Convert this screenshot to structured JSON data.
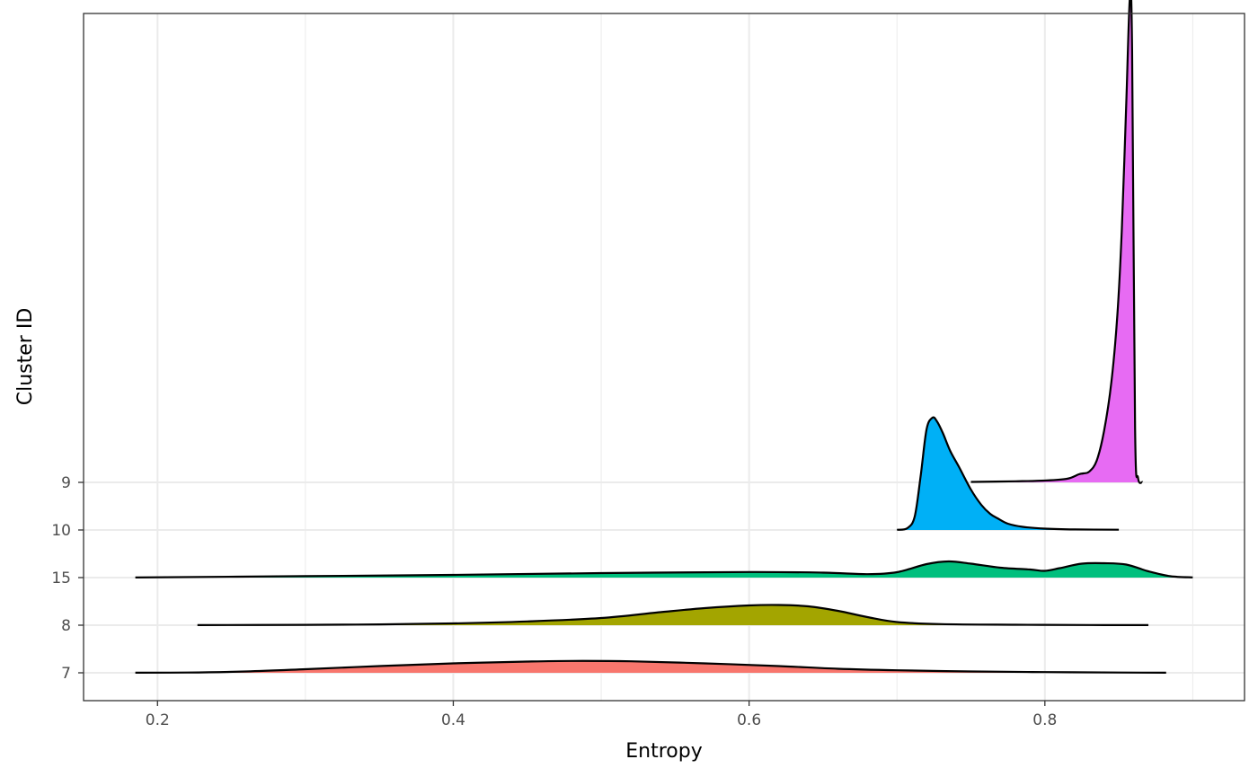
{
  "chart_data": {
    "type": "ridgeline",
    "title": "",
    "xlabel": "Entropy",
    "ylabel": "Cluster ID",
    "xlim": [
      0.15,
      0.935
    ],
    "x_ticks": [
      0.2,
      0.4,
      0.6,
      0.8
    ],
    "x_tick_labels": [
      "0.2",
      "0.4",
      "0.6",
      "0.8"
    ],
    "categories": [
      "7",
      "8",
      "15",
      "10",
      "9"
    ],
    "grid": true,
    "legend": "none",
    "series": [
      {
        "name": "7",
        "color": "#F8766D",
        "x": [
          0.185,
          0.22,
          0.26,
          0.3,
          0.35,
          0.4,
          0.45,
          0.48,
          0.52,
          0.57,
          0.62,
          0.66,
          0.7,
          0.75,
          0.8,
          0.85,
          0.882
        ],
        "density": [
          0.1,
          0.3,
          1.5,
          4.0,
          7.5,
          10.5,
          12.5,
          13.2,
          12.8,
          10.5,
          7.5,
          4.5,
          2.8,
          1.5,
          0.8,
          0.3,
          0.1
        ]
      },
      {
        "name": "8",
        "color": "#A3A500",
        "x": [
          0.227,
          0.3,
          0.35,
          0.4,
          0.45,
          0.5,
          0.54,
          0.57,
          0.6,
          0.62,
          0.64,
          0.66,
          0.68,
          0.7,
          0.73,
          0.78,
          0.83,
          0.87
        ],
        "density": [
          0.1,
          0.4,
          0.9,
          2.0,
          4.2,
          8.0,
          14.5,
          19.0,
          22.0,
          22.5,
          21.0,
          16.0,
          9.0,
          3.5,
          1.2,
          0.5,
          0.2,
          0.1
        ]
      },
      {
        "name": "15",
        "color": "#00BF7D",
        "x": [
          0.185,
          0.3,
          0.4,
          0.5,
          0.6,
          0.65,
          0.68,
          0.7,
          0.72,
          0.735,
          0.75,
          0.77,
          0.79,
          0.8,
          0.81,
          0.825,
          0.84,
          0.855,
          0.87,
          0.885,
          0.9
        ],
        "density": [
          0.1,
          1.6,
          3.0,
          5.0,
          6.2,
          5.5,
          3.8,
          6.0,
          15.0,
          18.0,
          15.5,
          11.0,
          9.0,
          7.5,
          10.5,
          15.5,
          16.0,
          14.5,
          7.0,
          1.5,
          0.2
        ]
      },
      {
        "name": "10",
        "color": "#00B0F6",
        "x": [
          0.7,
          0.707,
          0.712,
          0.716,
          0.72,
          0.724,
          0.727,
          0.731,
          0.736,
          0.742,
          0.75,
          0.757,
          0.763,
          0.768,
          0.775,
          0.785,
          0.8,
          0.82,
          0.85
        ],
        "density": [
          0.2,
          2.0,
          15.0,
          60.0,
          112.0,
          125.0,
          121.0,
          108.0,
          88.0,
          70.0,
          45.0,
          28.0,
          18.0,
          13.0,
          7.0,
          3.5,
          1.5,
          0.6,
          0.3
        ]
      },
      {
        "name": "9",
        "color": "#E76BF3",
        "x": [
          0.75,
          0.78,
          0.8,
          0.815,
          0.823,
          0.826,
          0.83,
          0.835,
          0.84,
          0.845,
          0.849,
          0.852,
          0.855,
          0.8575,
          0.859,
          0.861,
          0.863,
          0.866
        ],
        "density": [
          0.5,
          1.2,
          2.0,
          4.0,
          9.0,
          10.0,
          12.0,
          24.0,
          57.0,
          112.0,
          186.0,
          280.0,
          420.0,
          540.0,
          480.0,
          60.0,
          5.0,
          0.3
        ]
      }
    ]
  }
}
